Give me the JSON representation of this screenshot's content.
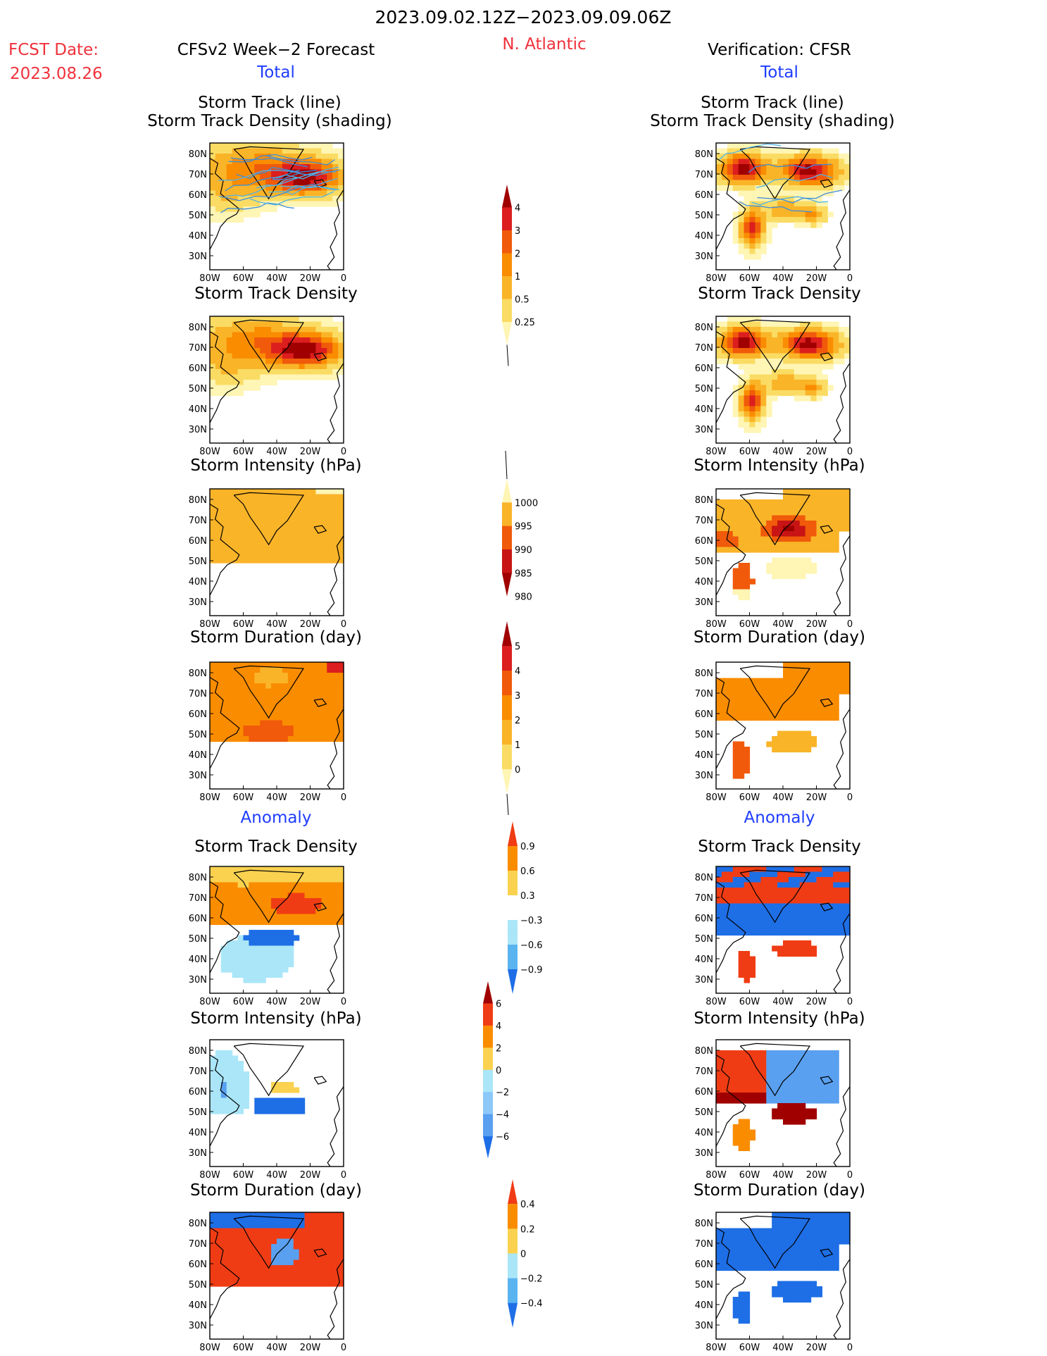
{
  "header": {
    "date_range": "2023.09.02.12Z−2023.09.09.06Z",
    "fcst_label": "FCST Date:",
    "fcst_date": "2023.08.26",
    "region": "N. Atlantic",
    "left_title": "CFSv2 Week−2 Forecast",
    "right_title": "Verification: CFSR",
    "total_label": "Total",
    "anomaly_label": "Anomaly"
  },
  "panel_titles": {
    "track_line": "Storm Track (line)",
    "track_shading": "Storm Track Density (shading)",
    "density": "Storm Track Density",
    "intensity": "Storm Intensity (hPa)",
    "duration": "Storm Duration (day)"
  },
  "axes": {
    "lat_ticks": [
      "80N",
      "70N",
      "60N",
      "50N",
      "40N",
      "30N"
    ],
    "lon_ticks": [
      "80W",
      "60W",
      "40W",
      "20W",
      "0"
    ]
  },
  "colorbars": {
    "density": {
      "labels": [
        "4",
        "3",
        "2",
        "1",
        "0.5",
        "0.25"
      ],
      "colors": [
        "#a00000",
        "#dc1e1e",
        "#f05a0a",
        "#fa8c00",
        "#fab428",
        "#fadc64",
        "#fff5b4"
      ]
    },
    "intensity": {
      "labels": [
        "1000",
        "995",
        "990",
        "985",
        "980"
      ],
      "colors": [
        "#fff5b4",
        "#fab428",
        "#f05a0a",
        "#c81414",
        "#a00000"
      ]
    },
    "duration": {
      "labels": [
        "5",
        "4",
        "3",
        "2",
        "1",
        "0"
      ],
      "colors": [
        "#a00000",
        "#dc1e1e",
        "#f05a0a",
        "#fa8c00",
        "#fab428",
        "#fadc64",
        "#fff5b4"
      ]
    },
    "anom_density": {
      "labels": [
        "0.9",
        "0.6",
        "0.3",
        "−0.3",
        "−0.6",
        "−0.9"
      ],
      "colors": [
        "#f03c14",
        "#fa8c00",
        "#fad250",
        "#ffffff",
        "#aae6f8",
        "#5ab4f0",
        "#1e6ee6"
      ]
    },
    "anom_intensity": {
      "labels": [
        "6",
        "4",
        "2",
        "0",
        "−2",
        "−4",
        "−6"
      ],
      "colors": [
        "#a00000",
        "#f03c14",
        "#fa8c00",
        "#fad250",
        "#aae6f8",
        "#8cc8f8",
        "#5aa0f0",
        "#1e6ee6"
      ]
    },
    "anom_duration": {
      "labels": [
        "0.4",
        "0.2",
        "0",
        "−0.2",
        "−0.4"
      ],
      "colors": [
        "#f03c14",
        "#fa8c00",
        "#fad250",
        "#aae6f8",
        "#5ab4f0",
        "#1e6ee6"
      ]
    }
  }
}
